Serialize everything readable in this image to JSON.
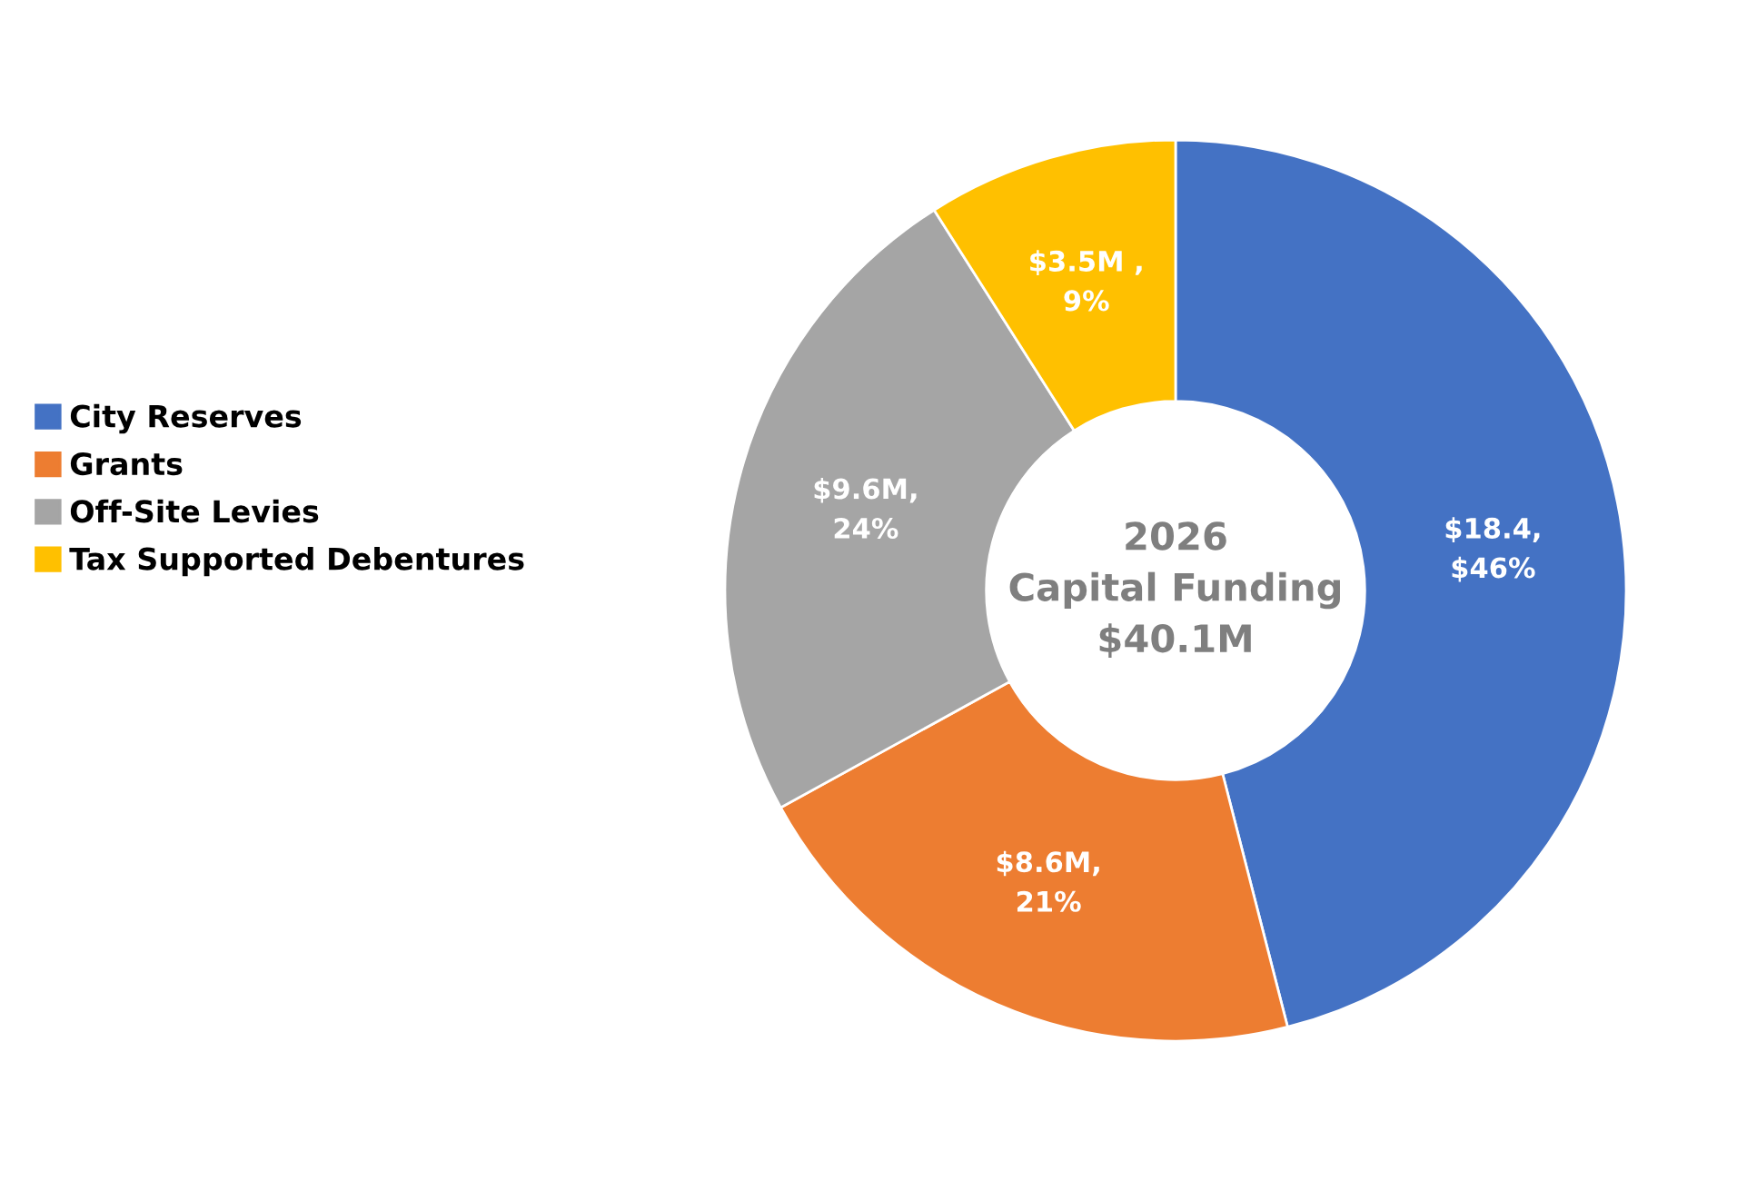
{
  "chart_data": {
    "type": "donut",
    "title": "2026\nCapital Funding\n$40.1M",
    "categories": [
      "City Reserves",
      "Grants",
      "Off-Site Levies",
      "Tax Supported Debentures"
    ],
    "values": [
      46,
      21,
      24,
      9
    ],
    "colors": [
      "#4472c4",
      "#ed7d31",
      "#a5a5a5",
      "#ffc000"
    ],
    "value_labels": [
      "$18.4,\n$46%",
      "$8.6M,\n21%",
      "$9.6M,\n24%",
      "$3.5M ,\n9%"
    ],
    "legend": "left"
  }
}
